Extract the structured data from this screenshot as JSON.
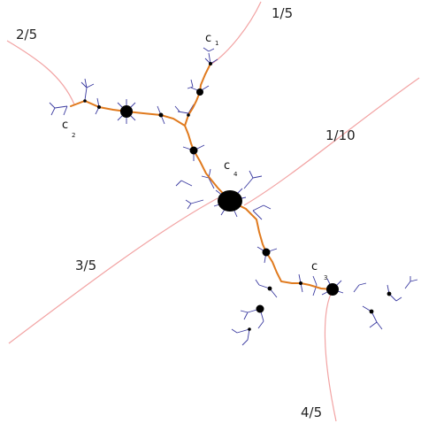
{
  "ray_labels": {
    "r_1_5": "1/5",
    "r_2_5": "2/5",
    "r_1_10": "1/10",
    "r_3_5": "3/5",
    "r_4_5": "4/5"
  },
  "points": {
    "c1": {
      "letter": "c",
      "sub": "1"
    },
    "c2": {
      "letter": "c",
      "sub": "2"
    },
    "c3": {
      "letter": "c",
      "sub": "3"
    },
    "c4": {
      "letter": "c",
      "sub": "4"
    }
  },
  "colors": {
    "ray": "#f2a3a3",
    "spine": "#e07a1e",
    "dendrite": "#3a3aa0",
    "bulb": "#000000"
  }
}
